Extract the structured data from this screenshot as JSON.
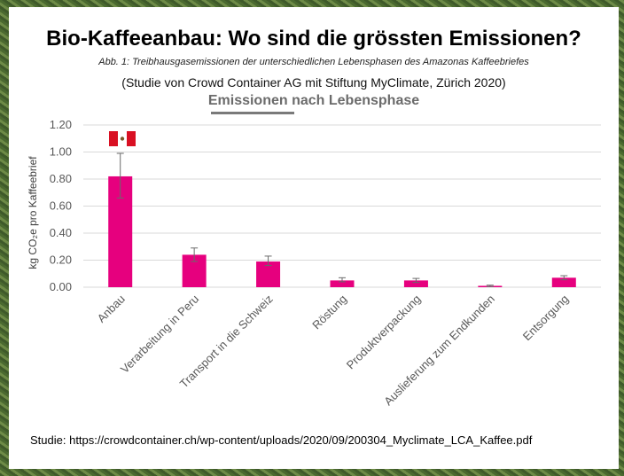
{
  "header": {
    "title": "Bio-Kaffeeanbau: Wo sind die grössten Emissionen?",
    "subtitle": "Abb. 1: Treibhausgasemissionen der unterschiedlichen Lebensphasen des Amazonas Kaffeebriefes",
    "study": "(Studie von Crowd Container AG mit Stiftung MyClimate, Zürich 2020)"
  },
  "footer": {
    "source": "Studie: https://crowdcontainer.ch/wp-content/uploads/2020/09/200304_Myclimate_LCA_Kaffee.pdf"
  },
  "colors": {
    "bar": "#e6007e",
    "grid": "#d9d9d9",
    "flag_red": "#d91023"
  },
  "chart_data": {
    "type": "bar",
    "title": "Emissionen nach Lebensphase",
    "ylabel": "kg CO₂e pro Kaffeebrief",
    "xlabel": "",
    "ylim": [
      0,
      1.2
    ],
    "yticks": [
      0.0,
      0.2,
      0.4,
      0.6,
      0.8,
      1.0,
      1.2
    ],
    "ytick_labels": [
      "0.00",
      "0.20",
      "0.40",
      "0.60",
      "0.80",
      "1.00",
      "1.20"
    ],
    "categories": [
      "Anbau",
      "Verarbeitung in Peru",
      "Transport in die Schweiz",
      "Röstung",
      "Produktverpackung",
      "Auslieferung zum Endkunden",
      "Entsorgung"
    ],
    "values": [
      0.82,
      0.24,
      0.19,
      0.05,
      0.05,
      0.01,
      0.07
    ],
    "error_low": [
      0.66,
      0.19,
      0.16,
      0.04,
      0.035,
      0.005,
      0.055
    ],
    "error_high": [
      0.99,
      0.29,
      0.23,
      0.07,
      0.065,
      0.015,
      0.085
    ],
    "grid": true,
    "annotation": "peru-flag-icon above Anbau"
  }
}
